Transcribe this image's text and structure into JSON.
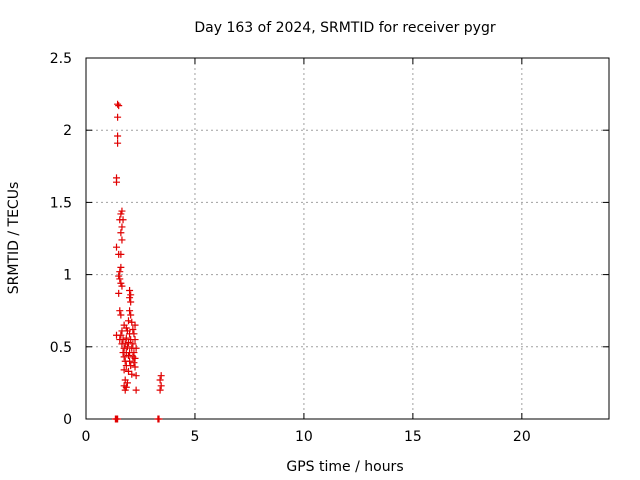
{
  "chart_data": {
    "type": "scatter",
    "title": "Day 163 of 2024, SRMTID for receiver pygr",
    "xlabel": "GPS time / hours",
    "ylabel": "SRMTID / TECUs",
    "xlim": [
      0,
      24
    ],
    "ylim": [
      0,
      2.5
    ],
    "x_ticks": [
      0,
      5,
      10,
      15,
      20
    ],
    "y_ticks": [
      0,
      0.5,
      1,
      1.5,
      2,
      2.5
    ],
    "x_tick_labels": [
      "0",
      "5",
      "10",
      "15",
      "20"
    ],
    "y_tick_labels": [
      "0",
      "0.5",
      "1",
      "1.5",
      "2",
      "2.5"
    ],
    "grid": true,
    "marker": "+",
    "series": [
      {
        "name": "SRMTID",
        "color": "#e00000",
        "points": [
          [
            1.35,
            0.0
          ],
          [
            1.4,
            0.0
          ],
          [
            1.45,
            0.0
          ],
          [
            1.45,
            2.18
          ],
          [
            1.5,
            2.17
          ],
          [
            1.45,
            2.09
          ],
          [
            1.45,
            1.96
          ],
          [
            1.45,
            1.91
          ],
          [
            1.4,
            1.67
          ],
          [
            1.4,
            1.64
          ],
          [
            1.65,
            1.44
          ],
          [
            1.6,
            1.42
          ],
          [
            1.55,
            1.38
          ],
          [
            1.7,
            1.38
          ],
          [
            1.65,
            1.33
          ],
          [
            1.6,
            1.29
          ],
          [
            1.65,
            1.24
          ],
          [
            1.4,
            1.19
          ],
          [
            1.5,
            1.14
          ],
          [
            1.6,
            1.14
          ],
          [
            1.6,
            1.05
          ],
          [
            1.55,
            1.02
          ],
          [
            1.5,
            0.99
          ],
          [
            1.55,
            0.97
          ],
          [
            1.6,
            0.94
          ],
          [
            1.65,
            0.92
          ],
          [
            1.5,
            0.87
          ],
          [
            2.0,
            0.89
          ],
          [
            2.05,
            0.86
          ],
          [
            2.0,
            0.84
          ],
          [
            2.05,
            0.81
          ],
          [
            1.55,
            0.75
          ],
          [
            1.6,
            0.72
          ],
          [
            2.0,
            0.75
          ],
          [
            2.05,
            0.72
          ],
          [
            1.95,
            0.68
          ],
          [
            2.1,
            0.67
          ],
          [
            1.75,
            0.65
          ],
          [
            2.25,
            0.65
          ],
          [
            1.85,
            0.63
          ],
          [
            2.15,
            0.62
          ],
          [
            1.65,
            0.61
          ],
          [
            1.9,
            0.61
          ],
          [
            1.4,
            0.58
          ],
          [
            1.6,
            0.58
          ],
          [
            2.0,
            0.59
          ],
          [
            2.2,
            0.59
          ],
          [
            1.55,
            0.55
          ],
          [
            1.7,
            0.55
          ],
          [
            1.85,
            0.56
          ],
          [
            2.05,
            0.55
          ],
          [
            2.25,
            0.55
          ],
          [
            1.65,
            0.52
          ],
          [
            1.8,
            0.52
          ],
          [
            1.95,
            0.53
          ],
          [
            2.15,
            0.52
          ],
          [
            1.75,
            0.49
          ],
          [
            1.9,
            0.5
          ],
          [
            2.1,
            0.49
          ],
          [
            2.3,
            0.49
          ],
          [
            1.7,
            0.46
          ],
          [
            1.85,
            0.46
          ],
          [
            2.0,
            0.46
          ],
          [
            2.2,
            0.46
          ],
          [
            1.75,
            0.43
          ],
          [
            1.95,
            0.44
          ],
          [
            2.15,
            0.43
          ],
          [
            2.25,
            0.42
          ],
          [
            1.8,
            0.4
          ],
          [
            2.0,
            0.4
          ],
          [
            2.2,
            0.39
          ],
          [
            1.85,
            0.37
          ],
          [
            2.05,
            0.37
          ],
          [
            2.25,
            0.36
          ],
          [
            1.75,
            0.34
          ],
          [
            1.95,
            0.33
          ],
          [
            2.1,
            0.31
          ],
          [
            2.3,
            0.3
          ],
          [
            1.8,
            0.27
          ],
          [
            1.9,
            0.25
          ],
          [
            1.75,
            0.23
          ],
          [
            1.85,
            0.22
          ],
          [
            1.8,
            0.2
          ],
          [
            2.3,
            0.2
          ],
          [
            3.3,
            0.0
          ],
          [
            3.35,
            0.0
          ],
          [
            3.45,
            0.3
          ],
          [
            3.4,
            0.27
          ],
          [
            3.45,
            0.23
          ],
          [
            3.4,
            0.2
          ]
        ]
      }
    ]
  }
}
